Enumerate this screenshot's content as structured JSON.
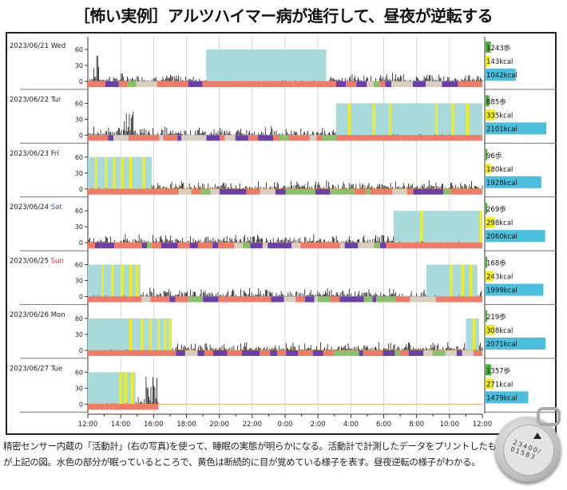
{
  "title": "［怖い実例］アルツハイマー病が進行して、昼夜が逆転する",
  "caption": [
    "精密センサー内蔵の「活動計」(右の写真)を使って、睡眠の実態が明らかになる。活動計で計測したデータをプリントしたもの",
    "が上記の図。水色の部分が眠っているところで、黄色は断続的に目が覚めている様子を表す。昼夜逆転の様子がわかる。"
  ],
  "device_label": "2 3 4 0 0 / 0 1 5 8 3",
  "colors": {
    "sleep": "#a8dadc",
    "wake": "#f2ee1a",
    "steps": "#4caf3c",
    "kcal": "#f2ee1a",
    "total": "#4bbfdc",
    "activity": "#111111",
    "band_rest": "#ef7a68",
    "band_active": "#6a3fa8",
    "band_light": "#d8cfc0",
    "band_mid": "#8cbf6a",
    "sat": "#3355aa",
    "sun": "#dd2222"
  },
  "chart_data": {
    "type": "bar",
    "xlabel": "",
    "ylabel": "",
    "x_ticks": [
      "12:00",
      "14:00",
      "16:00",
      "18:00",
      "20:00",
      "22:00",
      "0:00",
      "2:00",
      "4:00",
      "6:00",
      "8:00",
      "10:00",
      "12:00"
    ],
    "y_ticks": [
      "0",
      "30",
      "60"
    ],
    "ylim": [
      0,
      60
    ],
    "grid": true,
    "days": [
      {
        "date": "2023/06/21",
        "dow": "Wed",
        "steps": "1243歩",
        "steps_v": 1243,
        "kcal": "143kcal",
        "kcal_v": 143,
        "total": "1042kcal",
        "total_v": 1042,
        "sleep": [
          [
            7.2,
            14.5
          ]
        ],
        "wake": [],
        "data_end": 24
      },
      {
        "date": "2023/06/22",
        "dow": "Tur",
        "steps": "885歩",
        "steps_v": 885,
        "kcal": "335kcal",
        "kcal_v": 335,
        "total": "2101kcal",
        "total_v": 2101,
        "sleep": [
          [
            15.1,
            24
          ]
        ],
        "wake": [
          15.9,
          17.4,
          18.4,
          21.2,
          22.2,
          23.1
        ],
        "data_end": 24
      },
      {
        "date": "2023/06/23",
        "dow": "Fri",
        "steps": "96歩",
        "steps_v": 96,
        "kcal": "180kcal",
        "kcal_v": 180,
        "total": "1928kcal",
        "total_v": 1928,
        "sleep": [
          [
            0,
            3.9
          ]
        ],
        "wake": [
          0.5,
          1.1,
          1.6,
          2.1,
          2.6,
          3.4
        ],
        "data_end": 24
      },
      {
        "date": "2023/06/24",
        "dow": "Sat",
        "steps": "269歩",
        "steps_v": 269,
        "kcal": "298kcal",
        "kcal_v": 298,
        "total": "2060kcal",
        "total_v": 2060,
        "sleep": [
          [
            18.6,
            24
          ]
        ],
        "wake": [
          20.3,
          23.9
        ],
        "data_end": 24
      },
      {
        "date": "2023/06/25",
        "dow": "Sun",
        "steps": "168歩",
        "steps_v": 168,
        "kcal": "243kcal",
        "kcal_v": 243,
        "total": "1999kcal",
        "total_v": 1999,
        "sleep": [
          [
            0,
            3.2
          ],
          [
            20.6,
            23.7
          ]
        ],
        "wake": [
          0.9,
          1.5,
          2.1,
          2.6,
          3.0,
          22.1,
          22.8,
          23.3
        ],
        "data_end": 24
      },
      {
        "date": "2023/06/26",
        "dow": "Mon",
        "steps": "219歩",
        "steps_v": 219,
        "kcal": "308kcal",
        "kcal_v": 308,
        "total": "2071kcal",
        "total_v": 2071,
        "sleep": [
          [
            0,
            5.1
          ],
          [
            23.0,
            23.8
          ]
        ],
        "wake": [
          2.6,
          3.3,
          3.8,
          4.3,
          4.7,
          5.0,
          23.5
        ],
        "data_end": 24
      },
      {
        "date": "2023/06/27",
        "dow": "Tue",
        "steps": "1357歩",
        "steps_v": 1357,
        "kcal": "271kcal",
        "kcal_v": 271,
        "total": "1479kcal",
        "total_v": 1479,
        "sleep": [
          [
            0,
            2.9
          ]
        ],
        "wake": [
          2.0,
          2.3,
          2.7
        ],
        "data_end": 4.3
      }
    ]
  }
}
